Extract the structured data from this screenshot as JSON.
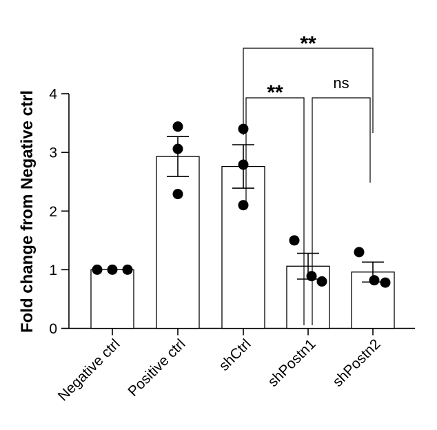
{
  "chart_data": {
    "type": "bar",
    "title": "",
    "xlabel": "",
    "ylabel": "Fold change from Negative ctrl",
    "ylim": [
      0,
      4
    ],
    "yticks": [
      0,
      1,
      2,
      3,
      4
    ],
    "categories": [
      "Negative ctrl",
      "Positive ctrl",
      "shCtrl",
      "shPostn1",
      "shPostn2"
    ],
    "values": [
      1.0,
      2.93,
      2.76,
      1.06,
      0.96
    ],
    "sem_upper": [
      1.0,
      3.27,
      3.13,
      1.28,
      1.13
    ],
    "sem_lower": [
      1.0,
      2.59,
      2.39,
      0.84,
      0.79
    ],
    "points": [
      [
        1.0,
        1.0,
        1.0
      ],
      [
        3.44,
        3.06,
        2.29
      ],
      [
        3.4,
        2.79,
        2.1
      ],
      [
        1.5,
        0.8,
        0.89
      ],
      [
        1.3,
        0.78,
        0.82
      ]
    ],
    "significance": [
      {
        "from": "shCtrl",
        "to": "shPostn1",
        "label": "**"
      },
      {
        "from": "shPostn1",
        "to": "shPostn2",
        "label": "ns"
      },
      {
        "from": "shCtrl",
        "to": "shPostn2",
        "label": "**"
      }
    ]
  }
}
